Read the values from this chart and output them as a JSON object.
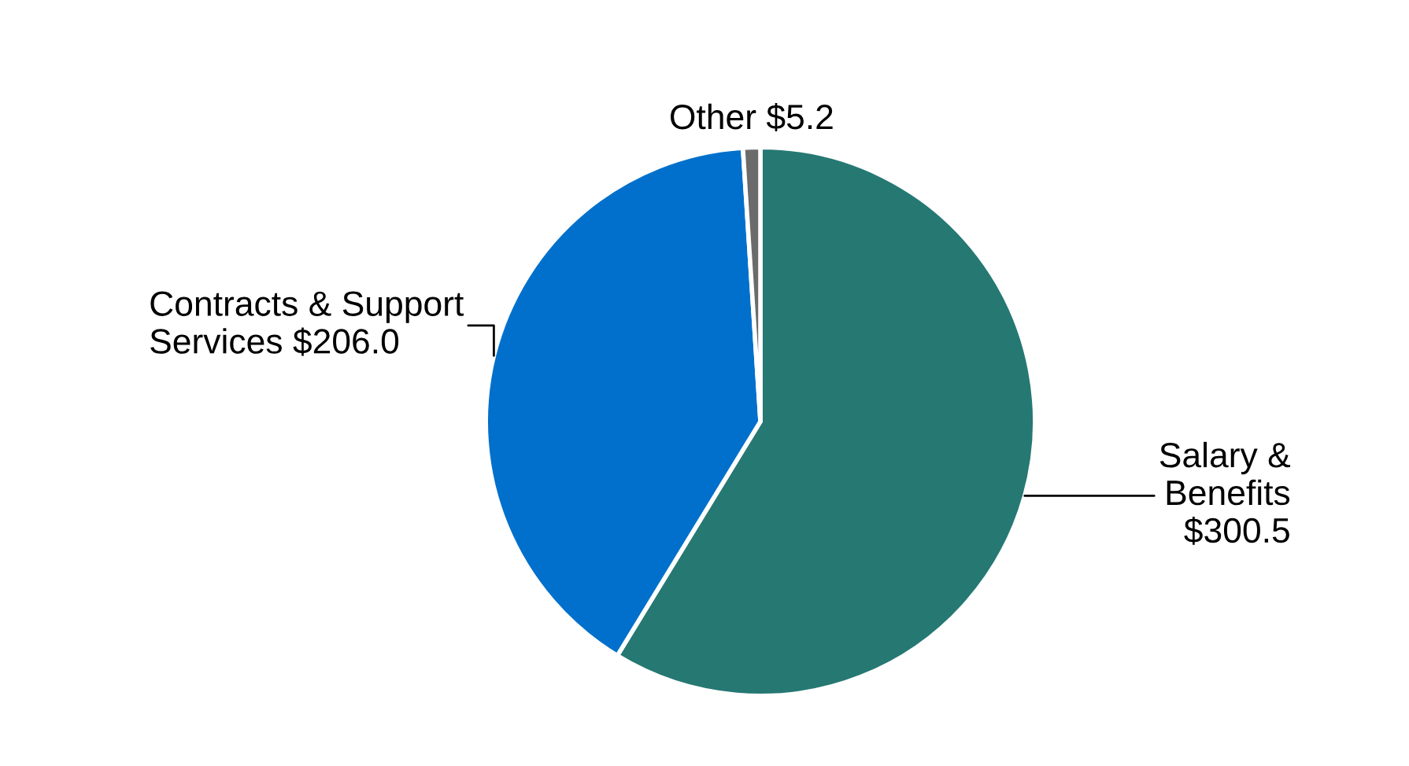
{
  "chart_data": {
    "type": "pie",
    "categories": [
      "Salary & Benefits",
      "Contracts & Support Services",
      "Other"
    ],
    "values": [
      300.5,
      206.0,
      5.2
    ],
    "colors": [
      "#267873",
      "#0070cc",
      "#6b6b6b"
    ],
    "value_labels": [
      "$300.5",
      "$206.0",
      "$5.2"
    ],
    "legend": false
  }
}
